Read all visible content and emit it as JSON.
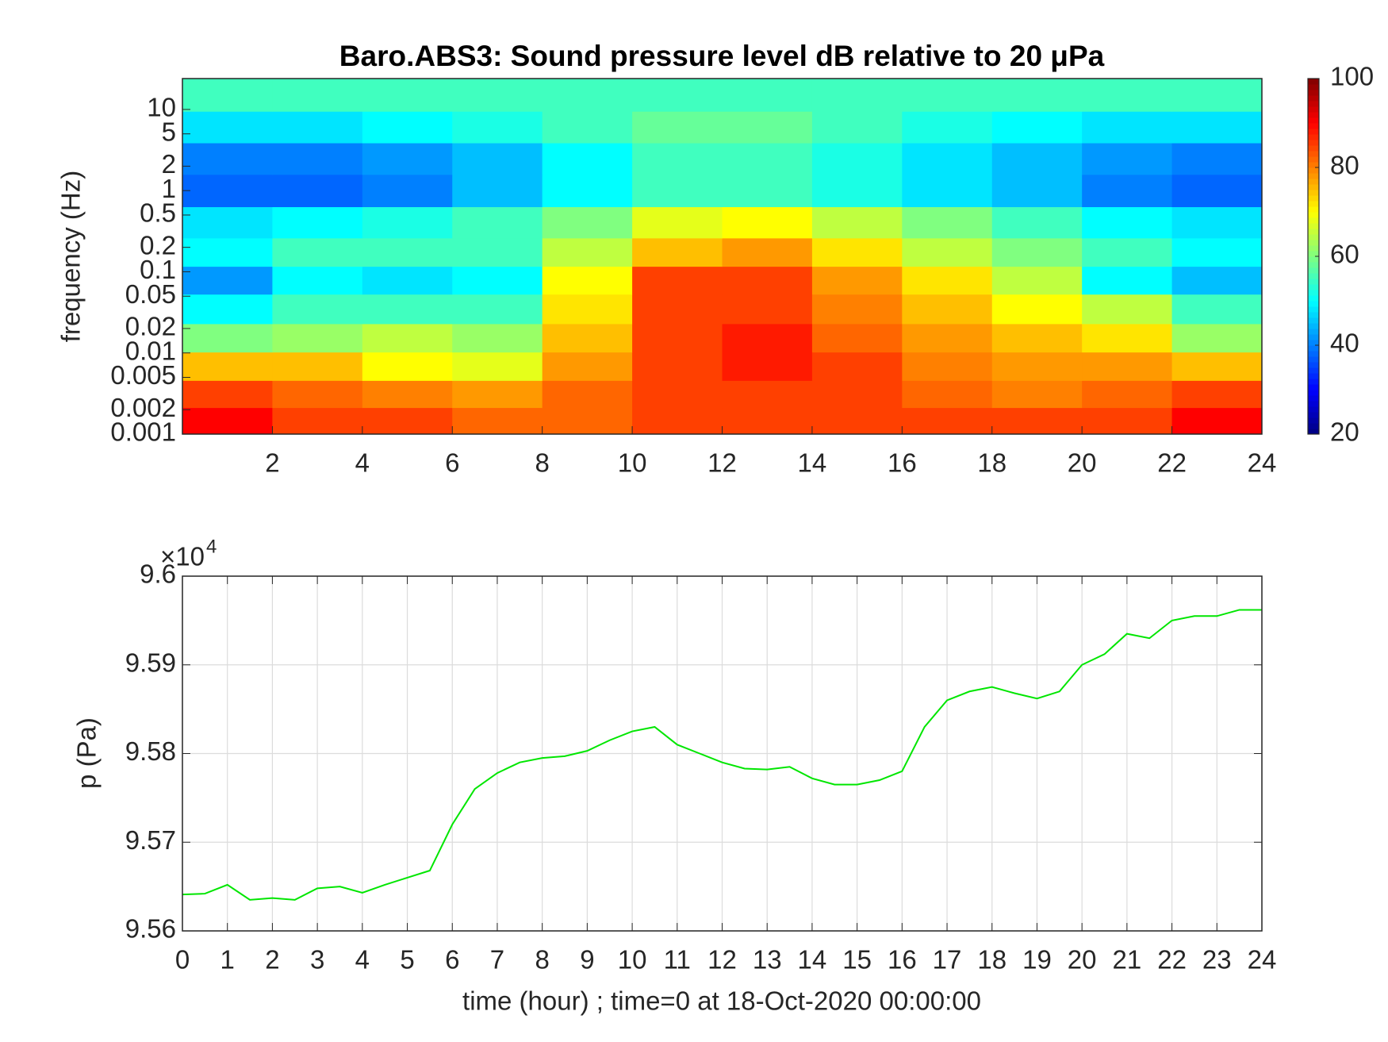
{
  "chart_data": [
    {
      "type": "heatmap",
      "title": "Baro.ABS3: Sound pressure level dB relative to 20 μPa",
      "y_label": "frequency (Hz)",
      "x": [
        1,
        3,
        5,
        7,
        9,
        11,
        13,
        15,
        17,
        19,
        21,
        23
      ],
      "y": [
        0.0015,
        0.003,
        0.007,
        0.015,
        0.035,
        0.08,
        0.17,
        0.4,
        1,
        2.5,
        6,
        15
      ],
      "values": [
        [
          90,
          85,
          85,
          82,
          82,
          85,
          85,
          85,
          85,
          85,
          85,
          90
        ],
        [
          85,
          82,
          80,
          78,
          82,
          85,
          85,
          85,
          82,
          80,
          82,
          85
        ],
        [
          75,
          75,
          70,
          68,
          78,
          85,
          88,
          85,
          80,
          78,
          78,
          75
        ],
        [
          60,
          62,
          65,
          62,
          75,
          85,
          88,
          82,
          78,
          75,
          72,
          62
        ],
        [
          50,
          55,
          55,
          55,
          72,
          85,
          85,
          80,
          75,
          70,
          65,
          55
        ],
        [
          42,
          50,
          48,
          50,
          70,
          85,
          85,
          78,
          72,
          65,
          50,
          45
        ],
        [
          50,
          55,
          55,
          55,
          65,
          75,
          78,
          72,
          65,
          60,
          55,
          50
        ],
        [
          48,
          50,
          52,
          55,
          60,
          68,
          70,
          65,
          60,
          55,
          50,
          48
        ],
        [
          38,
          38,
          40,
          45,
          50,
          55,
          55,
          52,
          48,
          45,
          40,
          38
        ],
        [
          40,
          40,
          42,
          45,
          50,
          55,
          55,
          52,
          48,
          45,
          42,
          40
        ],
        [
          48,
          48,
          50,
          52,
          55,
          58,
          58,
          55,
          52,
          50,
          48,
          48
        ],
        [
          55,
          55,
          55,
          55,
          55,
          55,
          55,
          55,
          55,
          55,
          55,
          55
        ]
      ],
      "colormap": "jet",
      "clim": [
        20,
        100
      ],
      "colorbar_ticks": [
        20,
        40,
        60,
        80,
        100
      ],
      "xlim": [
        0,
        24
      ],
      "xticks": [
        2,
        4,
        6,
        8,
        10,
        12,
        14,
        16,
        18,
        20,
        22,
        24
      ],
      "yscale": "log",
      "ylim": [
        0.001,
        24
      ],
      "yticks": [
        0.001,
        0.002,
        0.005,
        0.01,
        0.02,
        0.05,
        0.1,
        0.2,
        0.5,
        1,
        2,
        5,
        10
      ]
    },
    {
      "type": "line",
      "x_label": "time (hour) ; time=0 at 18-Oct-2020 00:00:00",
      "y_label": "p (Pa)",
      "y_multiplier": {
        "base": "×10",
        "power": "4"
      },
      "x": [
        0,
        0.5,
        1,
        1.5,
        2,
        2.5,
        3,
        3.5,
        4,
        4.5,
        5,
        5.5,
        6,
        6.5,
        7,
        7.5,
        8,
        8.5,
        9,
        9.5,
        10,
        10.5,
        11,
        11.5,
        12,
        12.5,
        13,
        13.5,
        14,
        14.5,
        15,
        15.5,
        16,
        16.5,
        17,
        17.5,
        18,
        18.5,
        19,
        19.5,
        20,
        20.5,
        21,
        21.5,
        22,
        22.5,
        23,
        23.5,
        24
      ],
      "series": [
        {
          "color": "#00e600",
          "values": [
            95641,
            95642,
            95652,
            95635,
            95637,
            95635,
            95648,
            95650,
            95643,
            95652,
            95660,
            95668,
            95720,
            95760,
            95778,
            95790,
            95795,
            95797,
            95803,
            95815,
            95825,
            95830,
            95810,
            95800,
            95790,
            95783,
            95782,
            95785,
            95772,
            95765,
            95765,
            95770,
            95780,
            95830,
            95860,
            95870,
            95875,
            95868,
            95862,
            95870,
            95900,
            95912,
            95935,
            95930,
            95950,
            95955,
            95955,
            95962,
            95962
          ]
        }
      ],
      "xlim": [
        0,
        24
      ],
      "xticks": [
        0,
        1,
        2,
        3,
        4,
        5,
        6,
        7,
        8,
        9,
        10,
        11,
        12,
        13,
        14,
        15,
        16,
        17,
        18,
        19,
        20,
        21,
        22,
        23,
        24
      ],
      "ylim": [
        95600,
        96000
      ],
      "yticks": [
        {
          "value": 95600,
          "label": "9.56"
        },
        {
          "value": 95700,
          "label": "9.57"
        },
        {
          "value": 95800,
          "label": "9.58"
        },
        {
          "value": 95900,
          "label": "9.59"
        },
        {
          "value": 96000,
          "label": "9.6"
        }
      ],
      "grid": true
    }
  ]
}
